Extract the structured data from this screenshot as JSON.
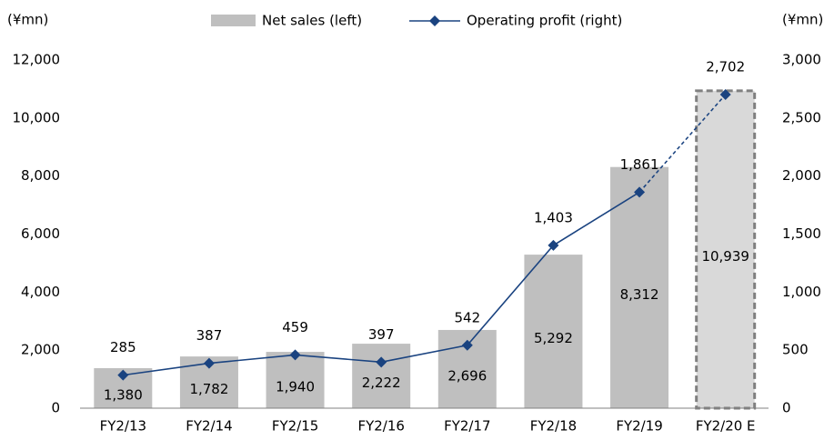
{
  "chart_data": {
    "type": "bar",
    "y_unit_left": "(¥mn)",
    "y_unit_right": "(¥mn)",
    "categories": [
      "FY2/13",
      "FY2/14",
      "FY2/15",
      "FY2/16",
      "FY2/17",
      "FY2/18",
      "FY2/19",
      "FY2/20 E"
    ],
    "estimated": [
      false,
      false,
      false,
      false,
      false,
      false,
      false,
      true
    ],
    "series": [
      {
        "name": "Net sales (left)",
        "type": "bar",
        "color": "#bfbfbf",
        "estimate_color": "#d9d9d9",
        "values": [
          1380,
          1782,
          1940,
          2222,
          2696,
          5292,
          8312,
          10939
        ],
        "value_labels": [
          "1,380",
          "1,782",
          "1,940",
          "2,222",
          "2,696",
          "5,292",
          "8,312",
          "10,939"
        ]
      },
      {
        "name": "Operating profit (right)",
        "type": "line",
        "axis": "y2",
        "color": "#1a4380",
        "values": [
          285,
          387,
          459,
          397,
          542,
          1403,
          1861,
          2702
        ],
        "value_labels": [
          "285",
          "387",
          "459",
          "397",
          "542",
          "1,403",
          "1,861",
          "2,702"
        ]
      }
    ],
    "ylim": [
      0,
      12000
    ],
    "yticks": [
      0,
      {
        "value": 2000,
        "label": "2,000"
      },
      {
        "value": 4000,
        "label": "4,000"
      },
      {
        "value": 6000,
        "label": "6,000"
      },
      {
        "value": 8000,
        "label": "8,000"
      },
      {
        "value": 10000,
        "label": "10,000"
      },
      {
        "value": 12000,
        "label": "12,000"
      }
    ],
    "y2lim": [
      0,
      3000
    ],
    "y2ticks": [
      0,
      500,
      {
        "value": 1000,
        "label": "1,000"
      },
      {
        "value": 1500,
        "label": "1,500"
      },
      {
        "value": 2000,
        "label": "2,000"
      },
      {
        "value": 2500,
        "label": "2,500"
      },
      {
        "value": 3000,
        "label": "3,000"
      }
    ],
    "grid": false
  }
}
